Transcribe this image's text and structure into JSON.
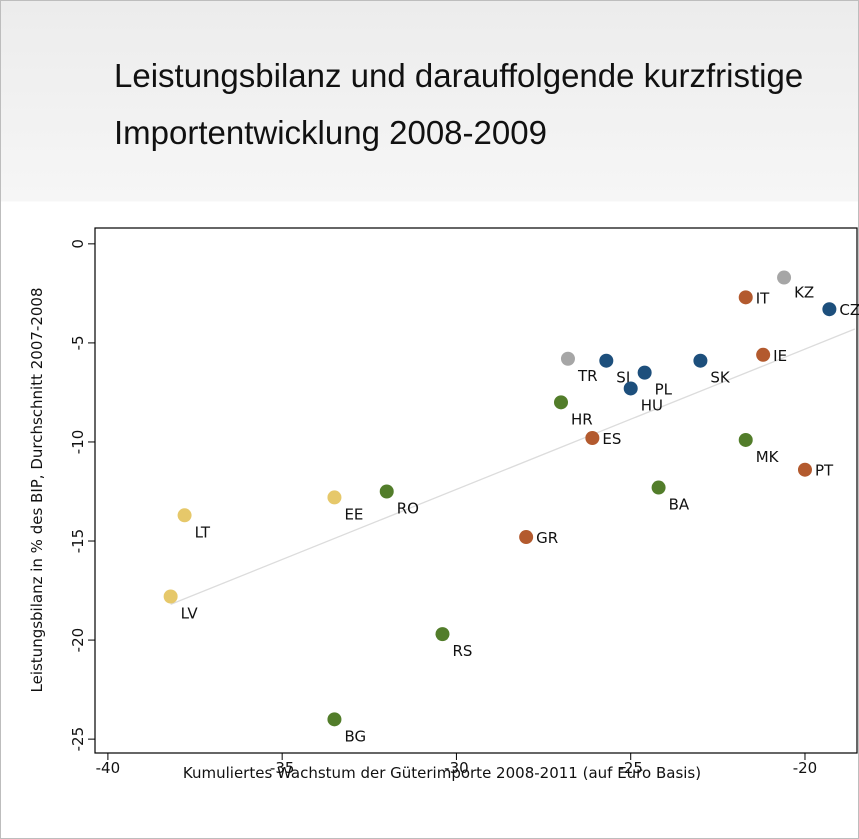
{
  "chart_data": {
    "type": "scatter",
    "title": "Leistungsbilanz und darauffolgende kurzfristige Importentwicklung 2008-2009",
    "x_label": "Kumuliertes Wachstum der Güterimporte 2008-2011 (auf Euro Basis)",
    "y_label": "Leistungsbilanz in % des BIP, Durchschnitt 2007-2008",
    "xlim": [
      -40.37,
      -18.45
    ],
    "ylim": [
      -25.7,
      0.8
    ],
    "xticks": [
      -40,
      -35,
      -30,
      -25,
      -20
    ],
    "yticks": [
      0,
      -5,
      -10,
      -15,
      -20,
      -25
    ],
    "points": [
      {
        "label": "KZ",
        "x": -20.6,
        "y": -1.7,
        "color": "#a6a6a6"
      },
      {
        "label": "IT",
        "x": -21.7,
        "y": -2.7,
        "color": "#b35a2e"
      },
      {
        "label": "CZ",
        "x": -19.3,
        "y": -3.3,
        "color": "#1d4f7c"
      },
      {
        "label": "TR",
        "x": -26.8,
        "y": -5.8,
        "color": "#a6a6a6"
      },
      {
        "label": "SI",
        "x": -25.7,
        "y": -5.9,
        "color": "#1d4f7c"
      },
      {
        "label": "PL",
        "x": -24.6,
        "y": -6.5,
        "color": "#1d4f7c"
      },
      {
        "label": "HU",
        "x": -25.0,
        "y": -7.3,
        "color": "#1d4f7c"
      },
      {
        "label": "SK",
        "x": -23.0,
        "y": -5.9,
        "color": "#1d4f7c"
      },
      {
        "label": "IE",
        "x": -21.2,
        "y": -5.6,
        "color": "#b35a2e"
      },
      {
        "label": "HR",
        "x": -27.0,
        "y": -8.0,
        "color": "#527d2a"
      },
      {
        "label": "ES",
        "x": -26.1,
        "y": -9.8,
        "color": "#b35a2e"
      },
      {
        "label": "MK",
        "x": -21.7,
        "y": -9.9,
        "color": "#527d2a"
      },
      {
        "label": "PT",
        "x": -20.0,
        "y": -11.4,
        "color": "#b35a2e"
      },
      {
        "label": "BA",
        "x": -24.2,
        "y": -12.3,
        "color": "#527d2a"
      },
      {
        "label": "RO",
        "x": -32.0,
        "y": -12.5,
        "color": "#527d2a"
      },
      {
        "label": "EE",
        "x": -33.5,
        "y": -12.8,
        "color": "#e6c86a"
      },
      {
        "label": "LT",
        "x": -37.8,
        "y": -13.7,
        "color": "#e6c86a"
      },
      {
        "label": "GR",
        "x": -28.0,
        "y": -14.8,
        "color": "#b35a2e"
      },
      {
        "label": "LV",
        "x": -38.2,
        "y": -17.8,
        "color": "#e6c86a"
      },
      {
        "label": "RS",
        "x": -30.4,
        "y": -19.7,
        "color": "#527d2a"
      },
      {
        "label": "BG",
        "x": -33.5,
        "y": -24.0,
        "color": "#527d2a"
      }
    ],
    "trendline": {
      "x": [
        -38.2,
        -18.57
      ],
      "y": [
        -18.2,
        -4.3
      ],
      "color": "#dcdcdc"
    }
  }
}
